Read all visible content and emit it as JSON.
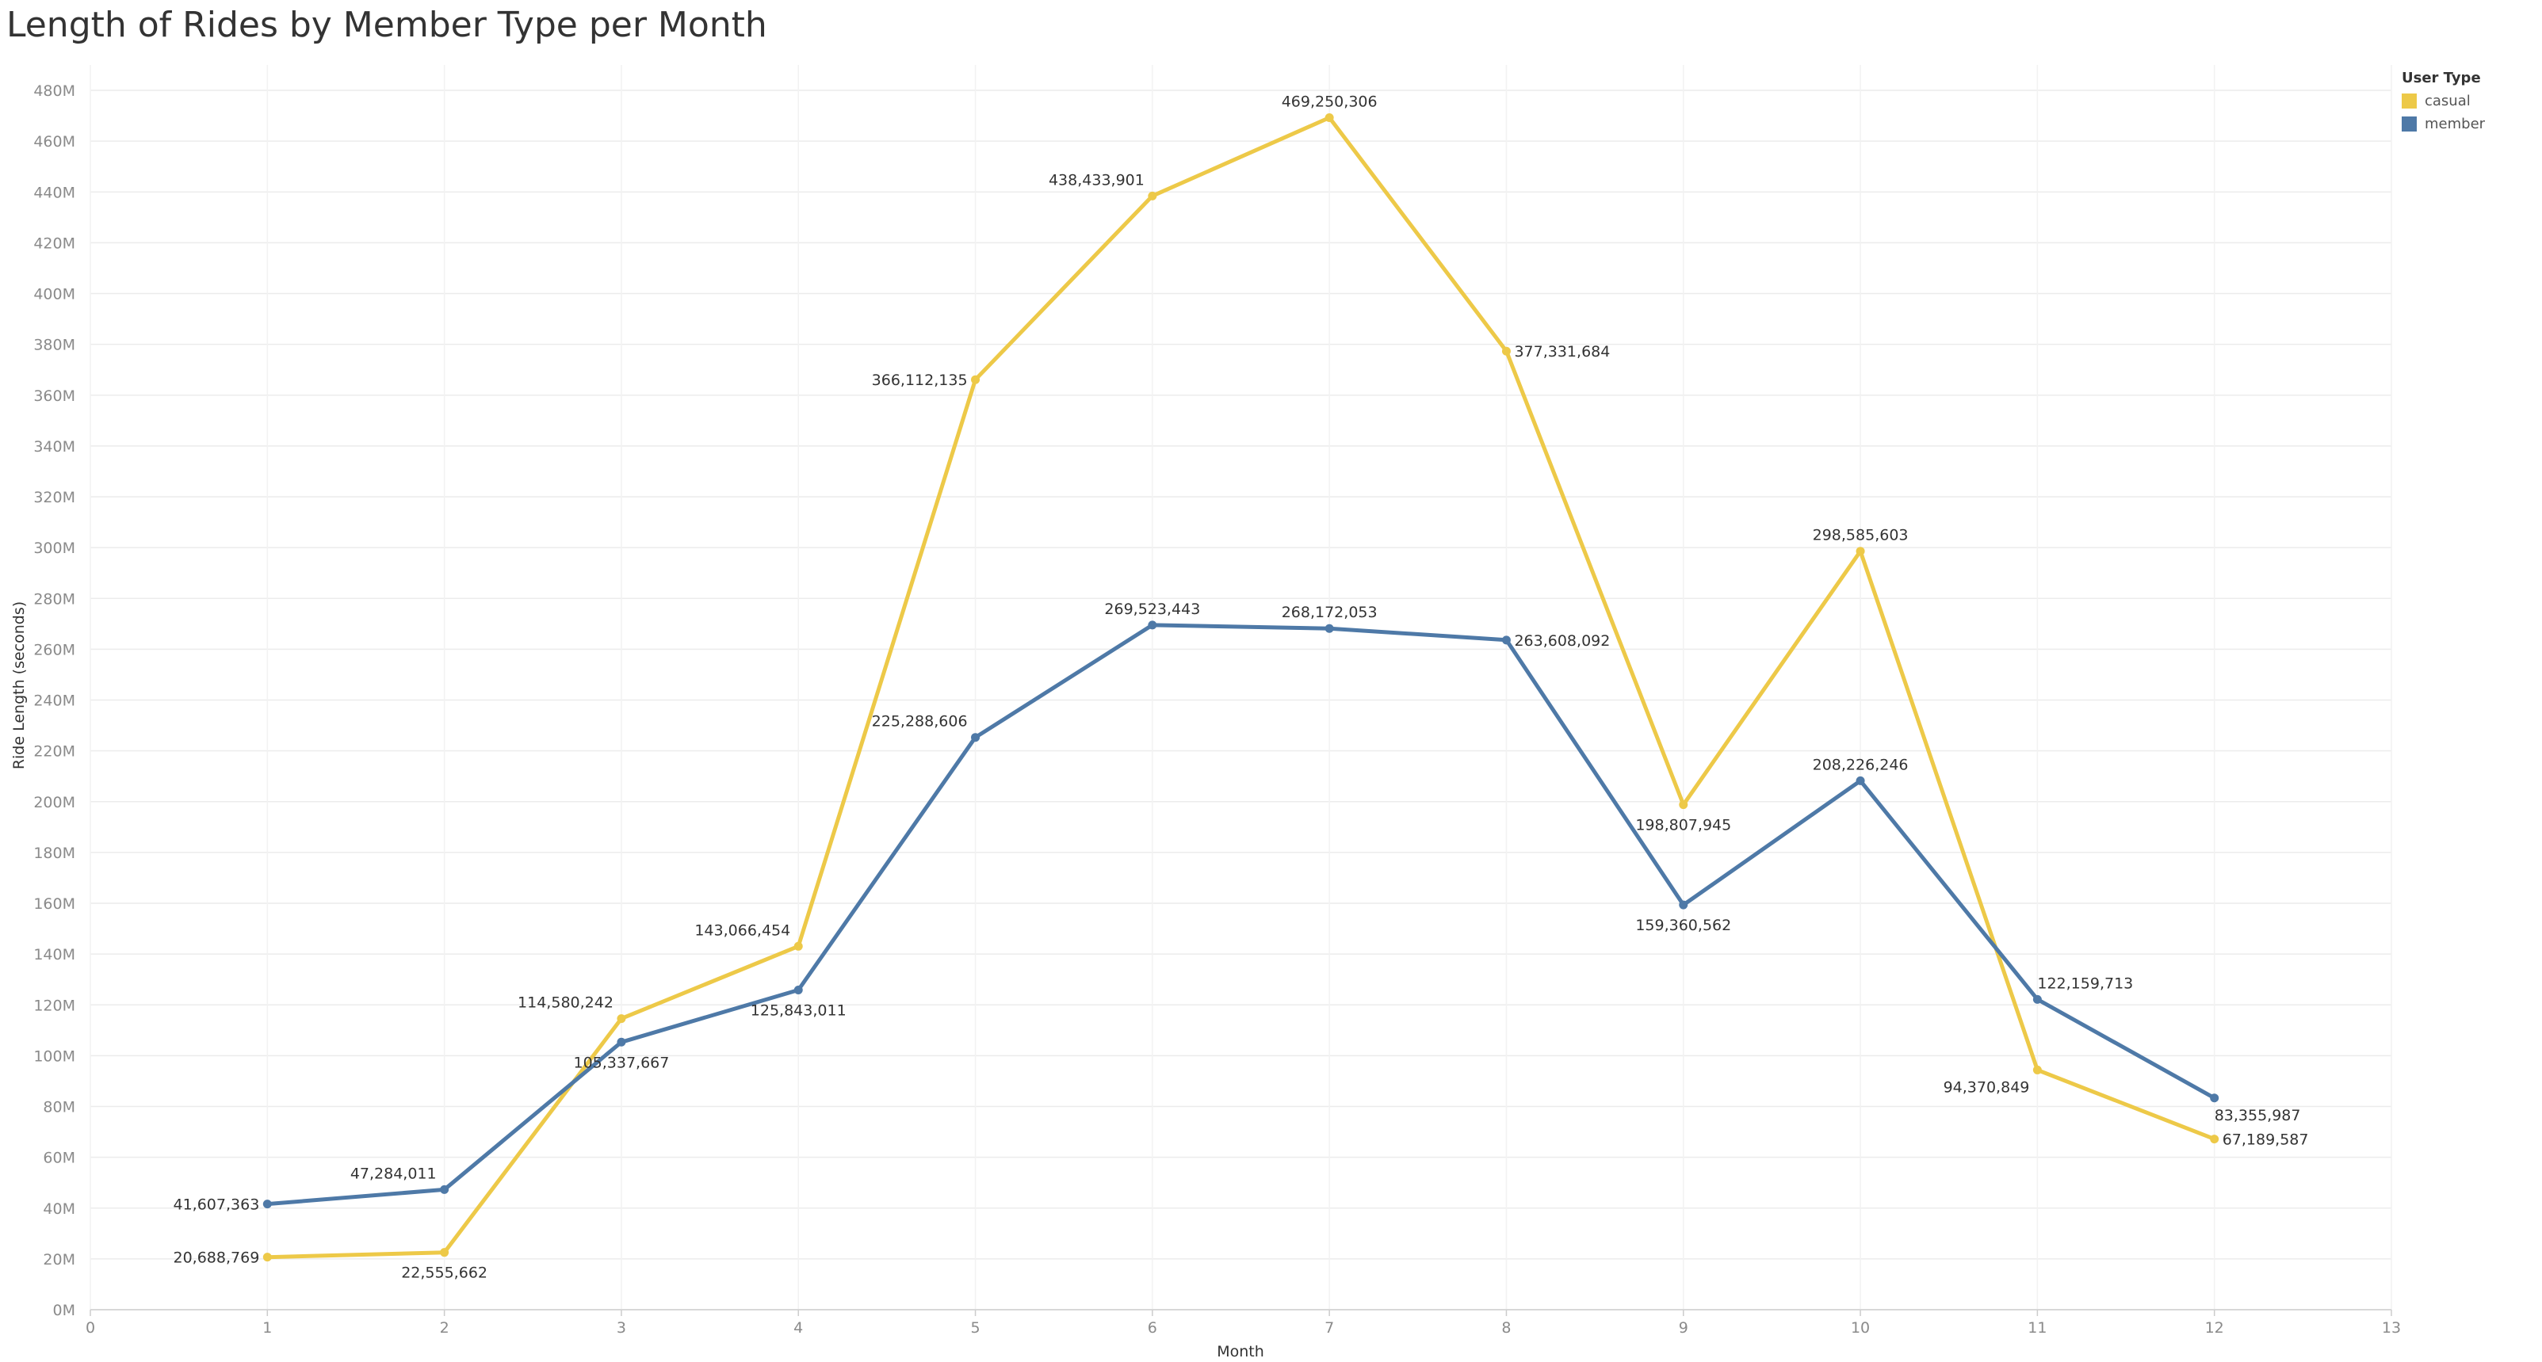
{
  "chart_data": {
    "type": "line",
    "title": "Length of Rides by Member Type per Month",
    "xlabel": "Month",
    "ylabel": "Ride Length (seconds)",
    "xlim": [
      0,
      13
    ],
    "ylim": [
      0,
      490000000
    ],
    "x_ticks": [
      "0",
      "1",
      "2",
      "3",
      "4",
      "5",
      "6",
      "7",
      "8",
      "9",
      "10",
      "11",
      "12",
      "13"
    ],
    "y_ticks": [
      {
        "value": 0,
        "label": "0M"
      },
      {
        "value": 20000000,
        "label": "20M"
      },
      {
        "value": 40000000,
        "label": "40M"
      },
      {
        "value": 60000000,
        "label": "60M"
      },
      {
        "value": 80000000,
        "label": "80M"
      },
      {
        "value": 100000000,
        "label": "100M"
      },
      {
        "value": 120000000,
        "label": "120M"
      },
      {
        "value": 140000000,
        "label": "140M"
      },
      {
        "value": 160000000,
        "label": "160M"
      },
      {
        "value": 180000000,
        "label": "180M"
      },
      {
        "value": 200000000,
        "label": "200M"
      },
      {
        "value": 220000000,
        "label": "220M"
      },
      {
        "value": 240000000,
        "label": "240M"
      },
      {
        "value": 260000000,
        "label": "260M"
      },
      {
        "value": 280000000,
        "label": "280M"
      },
      {
        "value": 300000000,
        "label": "300M"
      },
      {
        "value": 320000000,
        "label": "320M"
      },
      {
        "value": 340000000,
        "label": "340M"
      },
      {
        "value": 360000000,
        "label": "360M"
      },
      {
        "value": 380000000,
        "label": "380M"
      },
      {
        "value": 400000000,
        "label": "400M"
      },
      {
        "value": 420000000,
        "label": "420M"
      },
      {
        "value": 440000000,
        "label": "440M"
      },
      {
        "value": 460000000,
        "label": "460M"
      },
      {
        "value": 480000000,
        "label": "480M"
      }
    ],
    "grid": true,
    "legend": {
      "title": "User Type",
      "placement": "top-right"
    },
    "x": [
      1,
      2,
      3,
      4,
      5,
      6,
      7,
      8,
      9,
      10,
      11,
      12
    ],
    "series": [
      {
        "name": "casual",
        "color": "#EDC948",
        "values": [
          20688769,
          22555662,
          114580242,
          143066454,
          366112135,
          438433901,
          469250306,
          377331684,
          198807945,
          298585603,
          94370849,
          67189587
        ],
        "labels": [
          "20,688,769",
          "22,555,662",
          "114,580,242",
          "143,066,454",
          "366,112,135",
          "438,433,901",
          "469,250,306",
          "377,331,684",
          "198,807,945",
          "298,585,603",
          "94,370,849",
          "67,189,587"
        ],
        "label_positions": [
          "left",
          "below",
          "above-left",
          "above-left",
          "left",
          "above-left",
          "above",
          "right",
          "below",
          "above",
          "below-left",
          "right"
        ]
      },
      {
        "name": "member",
        "color": "#4E79A7",
        "values": [
          41607363,
          47284011,
          105337667,
          125843011,
          225288606,
          269523443,
          268172053,
          263608092,
          159360562,
          208226246,
          122159713,
          83355987
        ],
        "labels": [
          "41,607,363",
          "47,284,011",
          "105,337,667",
          "125,843,011",
          "225,288,606",
          "269,523,443",
          "268,172,053",
          "263,608,092",
          "159,360,562",
          "208,226,246",
          "122,159,713",
          "83,355,987"
        ],
        "label_positions": [
          "left",
          "above-left",
          "below",
          "below",
          "above-left",
          "above",
          "above",
          "right",
          "below",
          "above",
          "above-right",
          "below-right"
        ]
      }
    ]
  }
}
